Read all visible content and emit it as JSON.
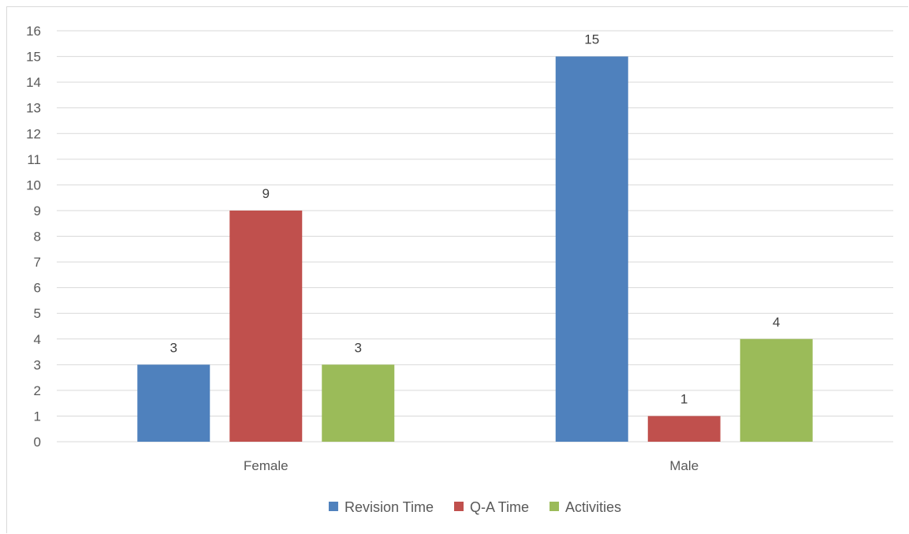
{
  "chart_data": {
    "type": "bar",
    "categories": [
      "Female",
      "Male"
    ],
    "series": [
      {
        "name": "Revision Time",
        "values": [
          3,
          15
        ],
        "color": "#4f81bd"
      },
      {
        "name": "Q-A Time",
        "values": [
          9,
          1
        ],
        "color": "#c0504d"
      },
      {
        "name": "Activities",
        "values": [
          3,
          4
        ],
        "color": "#9bbb59"
      }
    ],
    "ylim": [
      0,
      16
    ],
    "yticks": [
      0,
      1,
      2,
      3,
      4,
      5,
      6,
      7,
      8,
      9,
      10,
      11,
      12,
      13,
      14,
      15,
      16
    ],
    "grid": true,
    "legend_position": "bottom",
    "data_labels": true
  }
}
